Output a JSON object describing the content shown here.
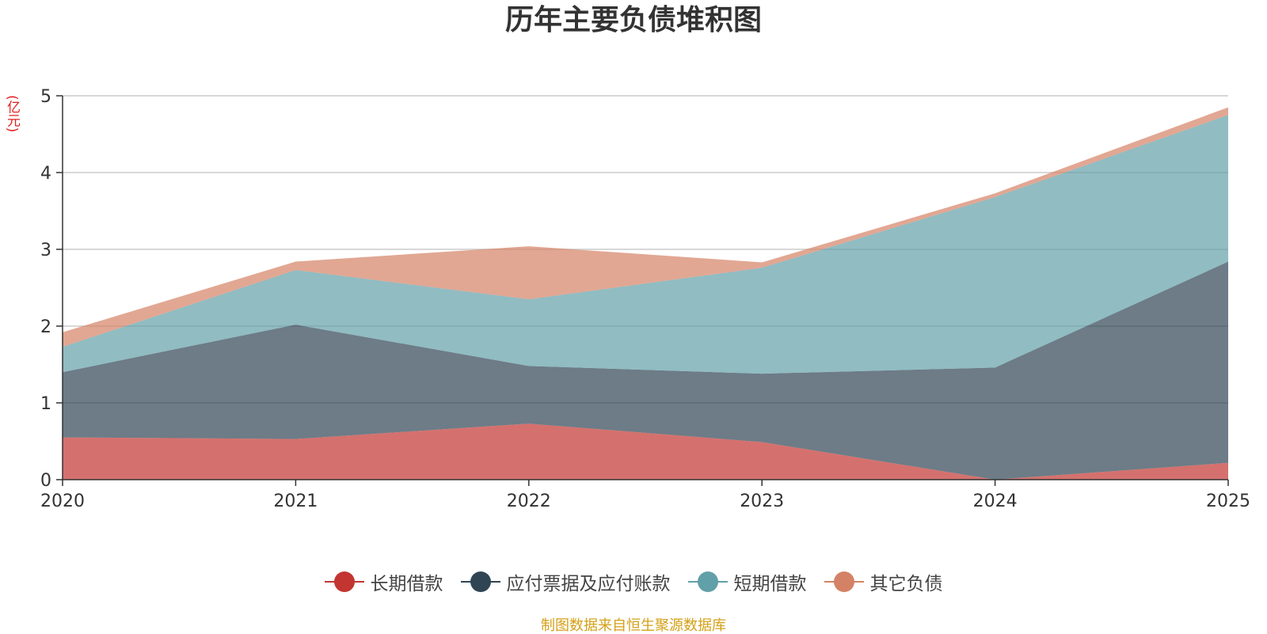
{
  "chart_data": {
    "type": "area",
    "stacked": true,
    "title": "历年主要负债堆积图",
    "ylabel": "(亿元)",
    "xlabel": "",
    "x": [
      "2020",
      "2021",
      "2022",
      "2023",
      "2024",
      "2025"
    ],
    "ylim": [
      0,
      5
    ],
    "yticks": [
      0,
      1,
      2,
      3,
      4,
      5
    ],
    "grid": true,
    "legend_position": "bottom",
    "series": [
      {
        "name": "长期借款",
        "color": "#c23531",
        "values": [
          0.55,
          0.53,
          0.73,
          0.49,
          0.0,
          0.22
        ]
      },
      {
        "name": "应付票据及应付账款",
        "color": "#2f4554",
        "values": [
          0.85,
          1.49,
          0.75,
          0.89,
          1.46,
          2.62
        ]
      },
      {
        "name": "短期借款",
        "color": "#61a0a8",
        "values": [
          0.33,
          0.71,
          0.87,
          1.38,
          2.22,
          1.91
        ]
      },
      {
        "name": "其它负债",
        "color": "#d48265",
        "values": [
          0.19,
          0.11,
          0.69,
          0.07,
          0.05,
          0.1
        ]
      }
    ],
    "source": "制图数据来自恒生聚源数据库"
  }
}
